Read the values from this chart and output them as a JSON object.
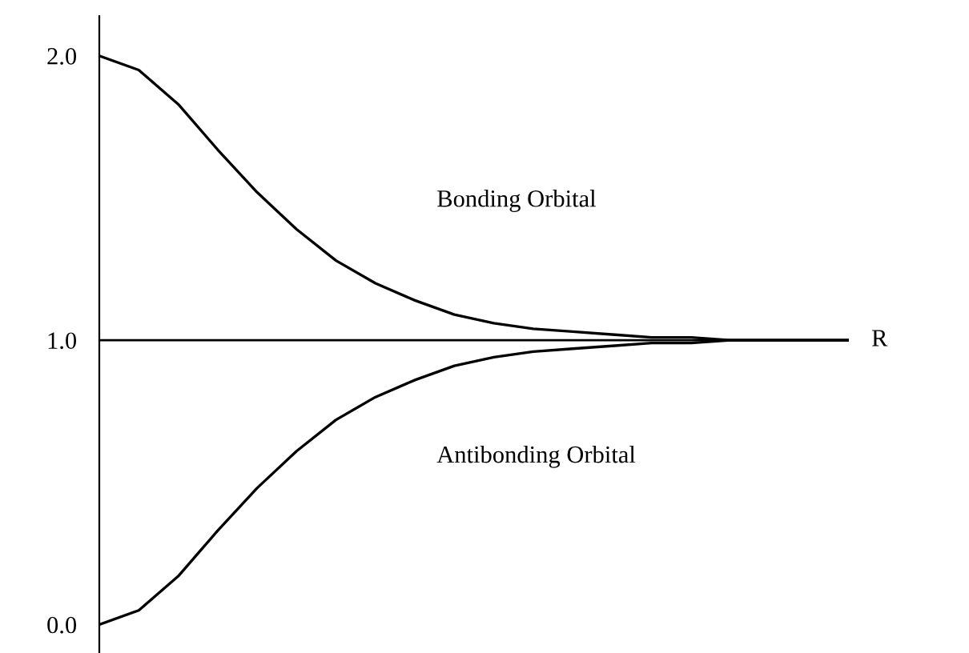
{
  "chart_data": {
    "type": "line",
    "categories": [
      null,
      null,
      null,
      null,
      null,
      null,
      null,
      null,
      null,
      null,
      null,
      null,
      null,
      null,
      null,
      null,
      null,
      null,
      null,
      null
    ],
    "series": [
      {
        "color": "#000000",
        "values": [
          2.0,
          1.95,
          1.83,
          1.67,
          1.52,
          1.39,
          1.28,
          1.2,
          1.14,
          1.09,
          1.06,
          1.04,
          1.03,
          1.02,
          1.01,
          1.01,
          1.0,
          1.0,
          1.0,
          1.0
        ]
      },
      {
        "color": "#000000",
        "values": [
          0.0,
          0.05,
          0.17,
          0.33,
          0.48,
          0.61,
          0.72,
          0.8,
          0.86,
          0.91,
          0.94,
          0.96,
          0.97,
          0.98,
          0.99,
          0.99,
          1.0,
          1.0,
          1.0,
          1.0
        ]
      }
    ],
    "ref_lines": [
      {
        "axis": "y",
        "value": 1,
        "label": "R",
        "color": "#000000",
        "line_style": "solid"
      }
    ],
    "ylim": [
      -0.1,
      2.14
    ],
    "yticks": [
      {
        "value": 0,
        "label": "0.0"
      },
      {
        "value": 1,
        "label": "1.0"
      },
      {
        "value": 2,
        "label": "2.0"
      }
    ],
    "annotations": [
      "Bonding Orbital",
      "Antibonding Orbital"
    ],
    "grid": false,
    "legend": false,
    "marker": "none",
    "line_style": "solid"
  }
}
